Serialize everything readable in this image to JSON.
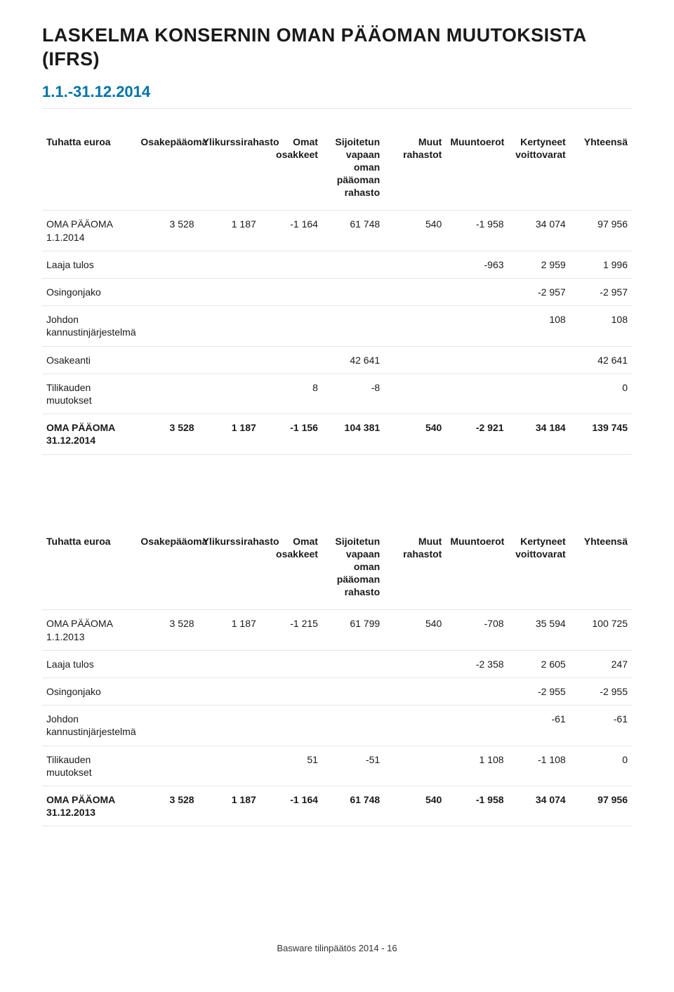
{
  "doc": {
    "title": "LASKELMA KONSERNIN OMAN PÄÄOMAN MUUTOKSISTA (IFRS)",
    "period": "1.1.-31.12.2014",
    "footer": "Basware tilinpäätös 2014  -  16"
  },
  "columns": [
    "Tuhatta euroa",
    "Osakepääoma",
    "Ylikurssirahasto",
    "Omat osakkeet",
    "Sijoitetun vapaan oman pääoman rahasto",
    "Muut rahastot",
    "Muuntoerot",
    "Kertyneet voittovarat",
    "Yhteensä"
  ],
  "tables": [
    {
      "rows": [
        {
          "label": "OMA PÄÄOMA 1.1.2014",
          "bold": false,
          "c": [
            "3 528",
            "1 187",
            "-1 164",
            "61 748",
            "540",
            "-1 958",
            "34 074",
            "97 956"
          ]
        },
        {
          "label": "Laaja tulos",
          "bold": false,
          "c": [
            "",
            "",
            "",
            "",
            "",
            "-963",
            "2 959",
            "1 996"
          ]
        },
        {
          "label": "Osingonjako",
          "bold": false,
          "c": [
            "",
            "",
            "",
            "",
            "",
            "",
            "-2 957",
            "-2 957"
          ]
        },
        {
          "label": "Johdon kannustinjärjestelmä",
          "bold": false,
          "c": [
            "",
            "",
            "",
            "",
            "",
            "",
            "108",
            "108"
          ]
        },
        {
          "label": "Osakeanti",
          "bold": false,
          "c": [
            "",
            "",
            "",
            "42 641",
            "",
            "",
            "",
            "42 641"
          ]
        },
        {
          "label": "Tilikauden muutokset",
          "bold": false,
          "c": [
            "",
            "",
            "8",
            "-8",
            "",
            "",
            "",
            "0"
          ]
        },
        {
          "label": "OMA PÄÄOMA 31.12.2014",
          "bold": true,
          "c": [
            "3 528",
            "1 187",
            "-1 156",
            "104 381",
            "540",
            "-2 921",
            "34 184",
            "139 745"
          ]
        }
      ]
    },
    {
      "rows": [
        {
          "label": "OMA PÄÄOMA 1.1.2013",
          "bold": false,
          "c": [
            "3 528",
            "1 187",
            "-1 215",
            "61 799",
            "540",
            "-708",
            "35 594",
            "100 725"
          ]
        },
        {
          "label": "Laaja tulos",
          "bold": false,
          "c": [
            "",
            "",
            "",
            "",
            "",
            "-2 358",
            "2 605",
            "247"
          ]
        },
        {
          "label": "Osingonjako",
          "bold": false,
          "c": [
            "",
            "",
            "",
            "",
            "",
            "",
            "-2 955",
            "-2 955"
          ]
        },
        {
          "label": "Johdon kannustinjärjestelmä",
          "bold": false,
          "c": [
            "",
            "",
            "",
            "",
            "",
            "",
            "-61",
            "-61"
          ]
        },
        {
          "label": "Tilikauden muutokset",
          "bold": false,
          "c": [
            "",
            "",
            "51",
            "-51",
            "",
            "1 108",
            "-1 108",
            "0"
          ]
        },
        {
          "label": "OMA PÄÄOMA 31.12.2013",
          "bold": true,
          "c": [
            "3 528",
            "1 187",
            "-1 164",
            "61 748",
            "540",
            "-1 958",
            "34 074",
            "97 956"
          ]
        }
      ]
    }
  ]
}
